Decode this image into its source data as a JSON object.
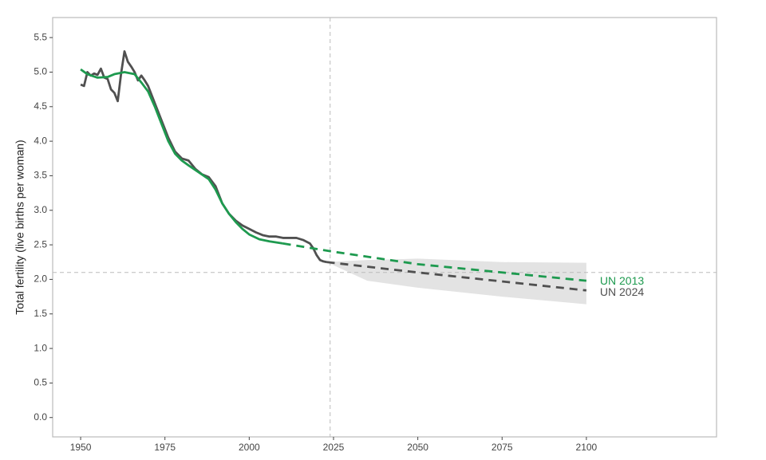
{
  "chart_data": {
    "type": "line",
    "y_label": "Total fertility (live births per woman)",
    "xlim": [
      1941.7,
      2138.6
    ],
    "ylim": [
      -0.28,
      5.79
    ],
    "xticks": [
      1950,
      1975,
      2000,
      2025,
      2050,
      2075,
      2100
    ],
    "yticks": [
      {
        "value": 0,
        "label": "0.0"
      },
      0.5,
      {
        "value": 1,
        "label": "1.0"
      },
      1.5,
      {
        "value": 2,
        "label": "2.0"
      },
      2.5,
      {
        "value": 3,
        "label": "3.0"
      },
      3.5,
      {
        "value": 4,
        "label": "4.0"
      },
      4.5,
      {
        "value": 5,
        "label": "5.0"
      },
      5.5
    ],
    "reference_lines": {
      "y": 2.1,
      "x": 2024
    },
    "series": [
      {
        "name": "UN 2024",
        "color": "#505050",
        "x": [
          1950,
          1951,
          1952,
          1953,
          1954,
          1955,
          1956,
          1957,
          1958,
          1959,
          1960,
          1961,
          1962,
          1963,
          1964,
          1965,
          1966,
          1967,
          1968,
          1969,
          1970,
          1972,
          1974,
          1976,
          1978,
          1980,
          1982,
          1984,
          1986,
          1988,
          1990,
          1992,
          1994,
          1996,
          1998,
          2000,
          2002,
          2004,
          2006,
          2008,
          2010,
          2012,
          2014,
          2016,
          2018,
          2019,
          2020,
          2021,
          2022,
          2023
        ],
        "values": [
          4.82,
          4.8,
          5.0,
          4.95,
          4.98,
          4.96,
          5.05,
          4.92,
          4.9,
          4.75,
          4.7,
          4.58,
          4.98,
          5.3,
          5.15,
          5.08,
          5.0,
          4.88,
          4.95,
          4.88,
          4.8,
          4.55,
          4.3,
          4.05,
          3.85,
          3.75,
          3.72,
          3.6,
          3.52,
          3.48,
          3.35,
          3.1,
          2.95,
          2.85,
          2.78,
          2.73,
          2.68,
          2.64,
          2.62,
          2.62,
          2.6,
          2.6,
          2.6,
          2.57,
          2.52,
          2.45,
          2.35,
          2.28,
          2.26,
          2.25
        ],
        "projected_x": [
          2023,
          2050,
          2075,
          2100
        ],
        "projected_values": [
          2.25,
          2.1,
          1.97,
          1.84
        ],
        "band": {
          "color": "#e3e3e3",
          "x": [
            2023,
            2035,
            2050,
            2075,
            2100
          ],
          "lower": [
            2.25,
            1.98,
            1.88,
            1.75,
            1.64
          ],
          "upper": [
            2.25,
            2.28,
            2.3,
            2.25,
            2.24
          ]
        }
      },
      {
        "name": "UN 2013",
        "color": "#1e9a4f",
        "x": [
          1950,
          1952,
          1955,
          1958,
          1960,
          1963,
          1966,
          1968,
          1970,
          1972,
          1974,
          1976,
          1978,
          1980,
          1982,
          1985,
          1988,
          1990,
          1992,
          1994,
          1996,
          1998,
          2000,
          2003,
          2006,
          2010
        ],
        "values": [
          5.04,
          4.97,
          4.92,
          4.93,
          4.97,
          5.0,
          4.97,
          4.85,
          4.72,
          4.5,
          4.25,
          4.0,
          3.82,
          3.72,
          3.65,
          3.55,
          3.45,
          3.3,
          3.1,
          2.95,
          2.83,
          2.73,
          2.65,
          2.58,
          2.55,
          2.52
        ],
        "projected_x": [
          2010,
          2025,
          2050,
          2075,
          2100
        ],
        "projected_values": [
          2.52,
          2.4,
          2.22,
          2.1,
          1.98
        ]
      }
    ]
  }
}
